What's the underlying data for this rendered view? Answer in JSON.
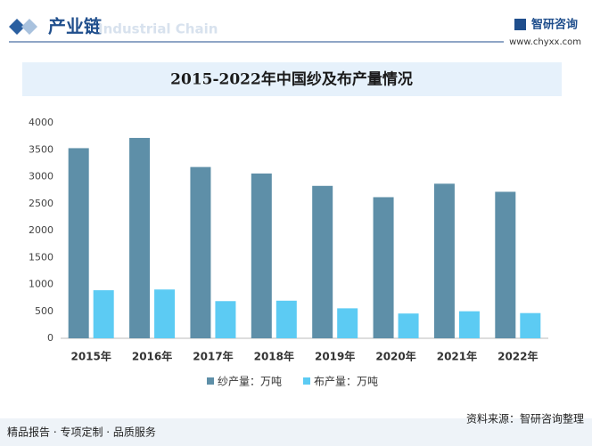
{
  "header": {
    "title": "产业链",
    "subtitle": "Industrial Chain",
    "brand": "智研咨询",
    "url": "www.chyxx.com"
  },
  "chart_data": {
    "type": "bar",
    "title": "2015-2022年中国纱及布产量情况",
    "categories": [
      "2015年",
      "2016年",
      "2017年",
      "2018年",
      "2019年",
      "2020年",
      "2021年",
      "2022年"
    ],
    "series": [
      {
        "name": "纱产量：万吨",
        "color": "#5e8fa8",
        "values": [
          3530,
          3720,
          3180,
          3060,
          2830,
          2620,
          2870,
          2720
        ]
      },
      {
        "name": "布产量：万吨",
        "color": "#5ccbf3",
        "values": [
          892,
          906,
          690,
          698,
          556,
          460,
          502,
          468
        ]
      }
    ],
    "ylim": [
      0,
      4000
    ],
    "yticks": [
      0,
      500,
      1000,
      1500,
      2000,
      2500,
      3000,
      3500,
      4000
    ],
    "legend": "bottom"
  },
  "footer": {
    "left": "精品报告 · 专项定制 · 品质服务",
    "source": "资料来源：智研咨询整理"
  }
}
